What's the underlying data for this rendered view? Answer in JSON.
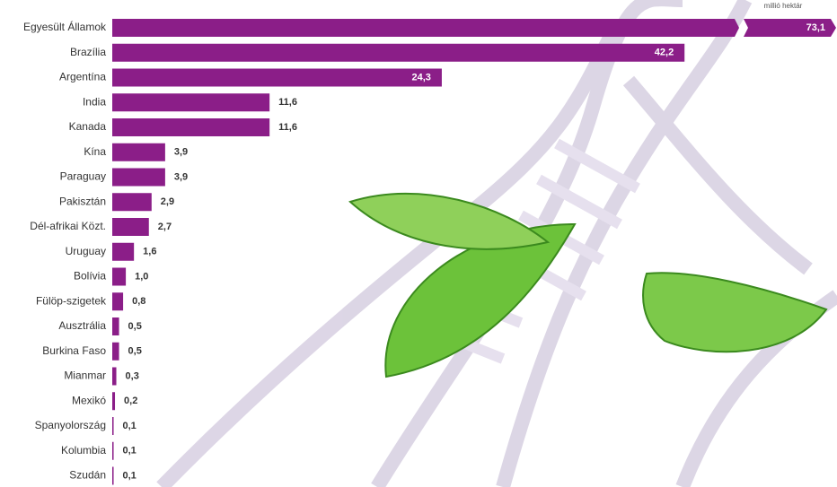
{
  "chart_data": {
    "type": "bar",
    "orientation": "horizontal",
    "unit": "millió hektár",
    "color": "#8b1e88",
    "categories": [
      "Egyesült Államok",
      "Brazília",
      "Argentína",
      "India",
      "Kanada",
      "Kína",
      "Paraguay",
      "Pakisztán",
      "Dél-afrikai Közt.",
      "Uruguay",
      "Bolívia",
      "Fülöp-szigetek",
      "Ausztrália",
      "Burkina Faso",
      "Mianmar",
      "Mexikó",
      "Spanyolország",
      "Kolumbia",
      "Szudán"
    ],
    "values": [
      73.1,
      42.2,
      24.3,
      11.6,
      11.6,
      3.9,
      3.9,
      2.9,
      2.7,
      1.6,
      1.0,
      0.8,
      0.5,
      0.5,
      0.3,
      0.2,
      0.1,
      0.1,
      0.1
    ],
    "value_labels": [
      "73,1",
      "42,2",
      "24,3",
      "11,6",
      "11,6",
      "3,9",
      "3,9",
      "2,9",
      "2,7",
      "1,6",
      "1,0",
      "0,8",
      "0,5",
      "0,5",
      "0,3",
      "0,2",
      "0,1",
      "0,1",
      "0,1"
    ]
  }
}
